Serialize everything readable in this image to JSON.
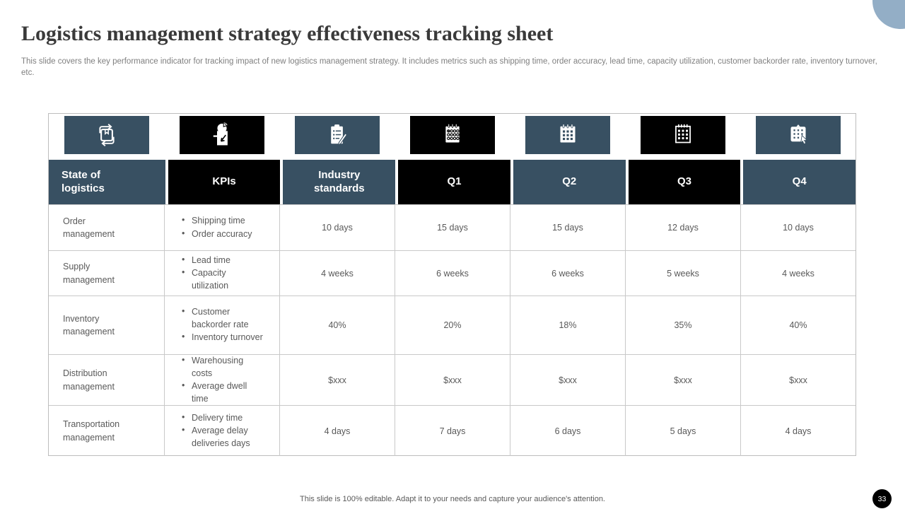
{
  "slide": {
    "title": "Logistics management strategy effectiveness tracking sheet",
    "subtitle": "This slide covers the key performance indicator for tracking impact of new logistics management strategy. It includes metrics such as shipping time, order accuracy, lead time, capacity utilization, customer backorder rate, inventory turnover,  etc.",
    "footer": "This slide is 100% editable. Adapt it to your needs and capture your audience's attention.",
    "page_number": "33"
  },
  "colors": {
    "accent_dark_blue": "#385062",
    "accent_black": "#000000",
    "decor_circle": "#93aec6",
    "body_text": "#595959",
    "table_border": "#c9c9c9"
  },
  "table": {
    "icons": [
      {
        "name": "package-sync-icon",
        "variant": "dark"
      },
      {
        "name": "report-pie-chart-icon",
        "variant": "black"
      },
      {
        "name": "clipboard-checklist-icon",
        "variant": "dark"
      },
      {
        "name": "calendar-circles-icon",
        "variant": "black"
      },
      {
        "name": "calendar-grid-icon",
        "variant": "dark"
      },
      {
        "name": "calendar-month-icon",
        "variant": "black"
      },
      {
        "name": "calendar-cursor-icon",
        "variant": "dark"
      }
    ],
    "columns": [
      {
        "label": "State of logistics",
        "variant": "dark"
      },
      {
        "label": "KPIs",
        "variant": "black"
      },
      {
        "label": "Industry standards",
        "variant": "dark"
      },
      {
        "label": "Q1",
        "variant": "black"
      },
      {
        "label": "Q2",
        "variant": "dark"
      },
      {
        "label": "Q3",
        "variant": "black"
      },
      {
        "label": "Q4",
        "variant": "dark"
      }
    ],
    "rows": [
      {
        "state": "Order management",
        "kpis": [
          "Shipping time",
          "Order accuracy"
        ],
        "values": [
          "10 days",
          "15 days",
          "15 days",
          "12 days",
          "10 days"
        ]
      },
      {
        "state": "Supply management",
        "kpis": [
          "Lead time",
          "Capacity utilization"
        ],
        "values": [
          "4 weeks",
          "6 weeks",
          "6 weeks",
          "5 weeks",
          "4 weeks"
        ]
      },
      {
        "state": "Inventory management",
        "kpis": [
          "Customer backorder rate",
          "Inventory turnover"
        ],
        "values": [
          "40%",
          "20%",
          "18%",
          "35%",
          "40%"
        ]
      },
      {
        "state": "Distribution management",
        "kpis": [
          "Warehousing costs",
          "Average dwell time"
        ],
        "values": [
          "$xxx",
          "$xxx",
          "$xxx",
          "$xxx",
          "$xxx"
        ]
      },
      {
        "state": "Transportation management",
        "kpis": [
          "Delivery time",
          "Average delay deliveries days"
        ],
        "values": [
          "4 days",
          "7 days",
          "6 days",
          "5 days",
          "4 days"
        ]
      }
    ]
  }
}
